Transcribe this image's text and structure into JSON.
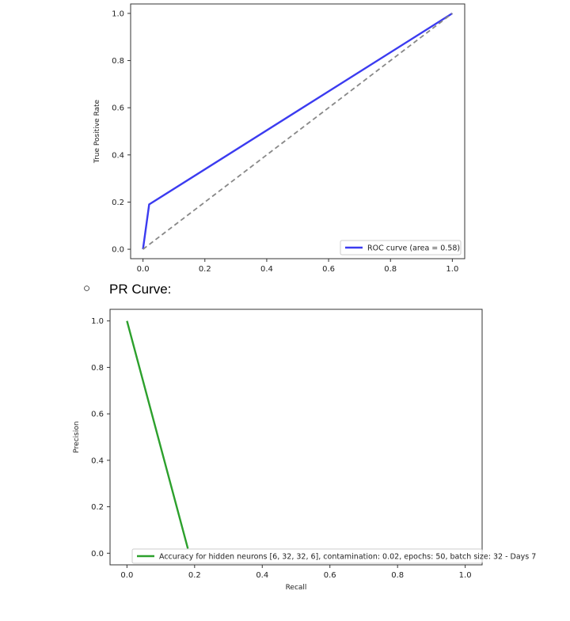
{
  "section": {
    "bullet": "○",
    "label": "PR Curve:"
  },
  "chart_data": [
    {
      "type": "line",
      "title": "",
      "xlabel": "",
      "ylabel": "True Positive Rate",
      "xlim": [
        -0.04,
        1.04
      ],
      "ylim": [
        -0.04,
        1.04
      ],
      "xticks": [
        "0.0",
        "0.2",
        "0.4",
        "0.6",
        "0.8",
        "1.0"
      ],
      "yticks": [
        "0.0",
        "0.2",
        "0.4",
        "0.6",
        "0.8",
        "1.0"
      ],
      "grid": false,
      "legend_position": "lower-right",
      "series": [
        {
          "name": "ROC curve (area = 0.58)",
          "color": "#3b3bf0",
          "style": "solid",
          "x": [
            0.0,
            0.02,
            1.0
          ],
          "y": [
            0.0,
            0.19,
            1.0
          ]
        },
        {
          "name": "",
          "color": "#888888",
          "style": "dashed",
          "x": [
            0.0,
            1.0
          ],
          "y": [
            0.0,
            1.0
          ]
        }
      ]
    },
    {
      "type": "line",
      "title": "",
      "xlabel": "Recall",
      "ylabel": "Precision",
      "xlim": [
        -0.05,
        1.05
      ],
      "ylim": [
        -0.05,
        1.05
      ],
      "xticks": [
        "0.0",
        "0.2",
        "0.4",
        "0.6",
        "0.8",
        "1.0"
      ],
      "yticks": [
        "0.0",
        "0.2",
        "0.4",
        "0.6",
        "0.8",
        "1.0"
      ],
      "grid": false,
      "legend_position": "lower-right",
      "series": [
        {
          "name": "Accuracy for hidden neurons [6, 32, 32, 6], contamination: 0.02, epochs: 50, batch size: 32 - Days 7",
          "color": "#2ca02c",
          "style": "solid",
          "x": [
            0.0,
            0.18
          ],
          "y": [
            1.0,
            0.02
          ]
        }
      ]
    }
  ]
}
